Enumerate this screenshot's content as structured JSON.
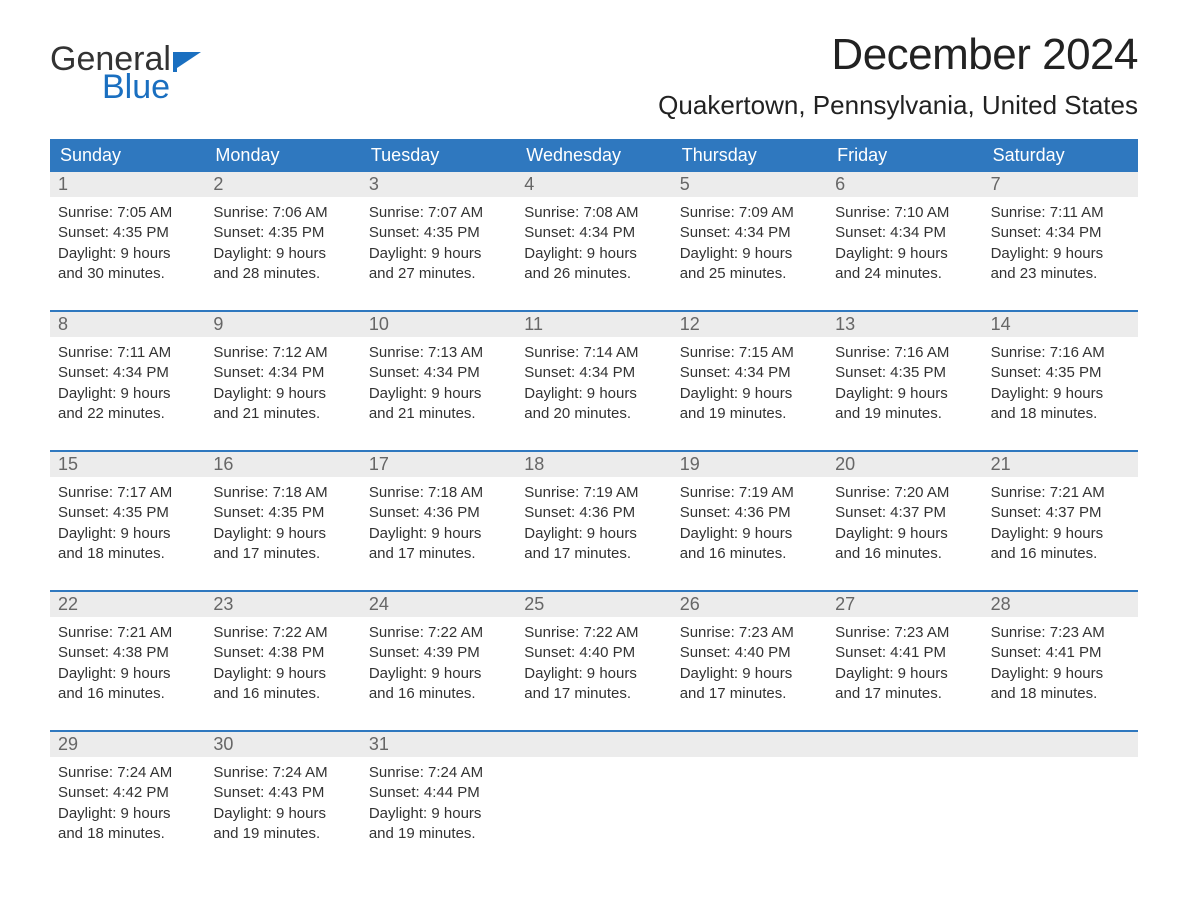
{
  "logo": {
    "word1": "General",
    "word2": "Blue",
    "flag_color": "#1a6fc0",
    "text_color_main": "#333333",
    "text_color_accent": "#1a6fc0"
  },
  "title": "December 2024",
  "location": "Quakertown, Pennsylvania, United States",
  "colors": {
    "header_bg": "#2f78bf",
    "header_text": "#ffffff",
    "daynum_bg": "#ececec",
    "daynum_text": "#666666",
    "body_text": "#333333",
    "week_border": "#2f78bf",
    "page_bg": "#ffffff"
  },
  "weekdays": [
    "Sunday",
    "Monday",
    "Tuesday",
    "Wednesday",
    "Thursday",
    "Friday",
    "Saturday"
  ],
  "weeks": [
    [
      {
        "n": "1",
        "sunrise": "Sunrise: 7:05 AM",
        "sunset": "Sunset: 4:35 PM",
        "d1": "Daylight: 9 hours",
        "d2": "and 30 minutes."
      },
      {
        "n": "2",
        "sunrise": "Sunrise: 7:06 AM",
        "sunset": "Sunset: 4:35 PM",
        "d1": "Daylight: 9 hours",
        "d2": "and 28 minutes."
      },
      {
        "n": "3",
        "sunrise": "Sunrise: 7:07 AM",
        "sunset": "Sunset: 4:35 PM",
        "d1": "Daylight: 9 hours",
        "d2": "and 27 minutes."
      },
      {
        "n": "4",
        "sunrise": "Sunrise: 7:08 AM",
        "sunset": "Sunset: 4:34 PM",
        "d1": "Daylight: 9 hours",
        "d2": "and 26 minutes."
      },
      {
        "n": "5",
        "sunrise": "Sunrise: 7:09 AM",
        "sunset": "Sunset: 4:34 PM",
        "d1": "Daylight: 9 hours",
        "d2": "and 25 minutes."
      },
      {
        "n": "6",
        "sunrise": "Sunrise: 7:10 AM",
        "sunset": "Sunset: 4:34 PM",
        "d1": "Daylight: 9 hours",
        "d2": "and 24 minutes."
      },
      {
        "n": "7",
        "sunrise": "Sunrise: 7:11 AM",
        "sunset": "Sunset: 4:34 PM",
        "d1": "Daylight: 9 hours",
        "d2": "and 23 minutes."
      }
    ],
    [
      {
        "n": "8",
        "sunrise": "Sunrise: 7:11 AM",
        "sunset": "Sunset: 4:34 PM",
        "d1": "Daylight: 9 hours",
        "d2": "and 22 minutes."
      },
      {
        "n": "9",
        "sunrise": "Sunrise: 7:12 AM",
        "sunset": "Sunset: 4:34 PM",
        "d1": "Daylight: 9 hours",
        "d2": "and 21 minutes."
      },
      {
        "n": "10",
        "sunrise": "Sunrise: 7:13 AM",
        "sunset": "Sunset: 4:34 PM",
        "d1": "Daylight: 9 hours",
        "d2": "and 21 minutes."
      },
      {
        "n": "11",
        "sunrise": "Sunrise: 7:14 AM",
        "sunset": "Sunset: 4:34 PM",
        "d1": "Daylight: 9 hours",
        "d2": "and 20 minutes."
      },
      {
        "n": "12",
        "sunrise": "Sunrise: 7:15 AM",
        "sunset": "Sunset: 4:34 PM",
        "d1": "Daylight: 9 hours",
        "d2": "and 19 minutes."
      },
      {
        "n": "13",
        "sunrise": "Sunrise: 7:16 AM",
        "sunset": "Sunset: 4:35 PM",
        "d1": "Daylight: 9 hours",
        "d2": "and 19 minutes."
      },
      {
        "n": "14",
        "sunrise": "Sunrise: 7:16 AM",
        "sunset": "Sunset: 4:35 PM",
        "d1": "Daylight: 9 hours",
        "d2": "and 18 minutes."
      }
    ],
    [
      {
        "n": "15",
        "sunrise": "Sunrise: 7:17 AM",
        "sunset": "Sunset: 4:35 PM",
        "d1": "Daylight: 9 hours",
        "d2": "and 18 minutes."
      },
      {
        "n": "16",
        "sunrise": "Sunrise: 7:18 AM",
        "sunset": "Sunset: 4:35 PM",
        "d1": "Daylight: 9 hours",
        "d2": "and 17 minutes."
      },
      {
        "n": "17",
        "sunrise": "Sunrise: 7:18 AM",
        "sunset": "Sunset: 4:36 PM",
        "d1": "Daylight: 9 hours",
        "d2": "and 17 minutes."
      },
      {
        "n": "18",
        "sunrise": "Sunrise: 7:19 AM",
        "sunset": "Sunset: 4:36 PM",
        "d1": "Daylight: 9 hours",
        "d2": "and 17 minutes."
      },
      {
        "n": "19",
        "sunrise": "Sunrise: 7:19 AM",
        "sunset": "Sunset: 4:36 PM",
        "d1": "Daylight: 9 hours",
        "d2": "and 16 minutes."
      },
      {
        "n": "20",
        "sunrise": "Sunrise: 7:20 AM",
        "sunset": "Sunset: 4:37 PM",
        "d1": "Daylight: 9 hours",
        "d2": "and 16 minutes."
      },
      {
        "n": "21",
        "sunrise": "Sunrise: 7:21 AM",
        "sunset": "Sunset: 4:37 PM",
        "d1": "Daylight: 9 hours",
        "d2": "and 16 minutes."
      }
    ],
    [
      {
        "n": "22",
        "sunrise": "Sunrise: 7:21 AM",
        "sunset": "Sunset: 4:38 PM",
        "d1": "Daylight: 9 hours",
        "d2": "and 16 minutes."
      },
      {
        "n": "23",
        "sunrise": "Sunrise: 7:22 AM",
        "sunset": "Sunset: 4:38 PM",
        "d1": "Daylight: 9 hours",
        "d2": "and 16 minutes."
      },
      {
        "n": "24",
        "sunrise": "Sunrise: 7:22 AM",
        "sunset": "Sunset: 4:39 PM",
        "d1": "Daylight: 9 hours",
        "d2": "and 16 minutes."
      },
      {
        "n": "25",
        "sunrise": "Sunrise: 7:22 AM",
        "sunset": "Sunset: 4:40 PM",
        "d1": "Daylight: 9 hours",
        "d2": "and 17 minutes."
      },
      {
        "n": "26",
        "sunrise": "Sunrise: 7:23 AM",
        "sunset": "Sunset: 4:40 PM",
        "d1": "Daylight: 9 hours",
        "d2": "and 17 minutes."
      },
      {
        "n": "27",
        "sunrise": "Sunrise: 7:23 AM",
        "sunset": "Sunset: 4:41 PM",
        "d1": "Daylight: 9 hours",
        "d2": "and 17 minutes."
      },
      {
        "n": "28",
        "sunrise": "Sunrise: 7:23 AM",
        "sunset": "Sunset: 4:41 PM",
        "d1": "Daylight: 9 hours",
        "d2": "and 18 minutes."
      }
    ],
    [
      {
        "n": "29",
        "sunrise": "Sunrise: 7:24 AM",
        "sunset": "Sunset: 4:42 PM",
        "d1": "Daylight: 9 hours",
        "d2": "and 18 minutes."
      },
      {
        "n": "30",
        "sunrise": "Sunrise: 7:24 AM",
        "sunset": "Sunset: 4:43 PM",
        "d1": "Daylight: 9 hours",
        "d2": "and 19 minutes."
      },
      {
        "n": "31",
        "sunrise": "Sunrise: 7:24 AM",
        "sunset": "Sunset: 4:44 PM",
        "d1": "Daylight: 9 hours",
        "d2": "and 19 minutes."
      },
      null,
      null,
      null,
      null
    ]
  ]
}
